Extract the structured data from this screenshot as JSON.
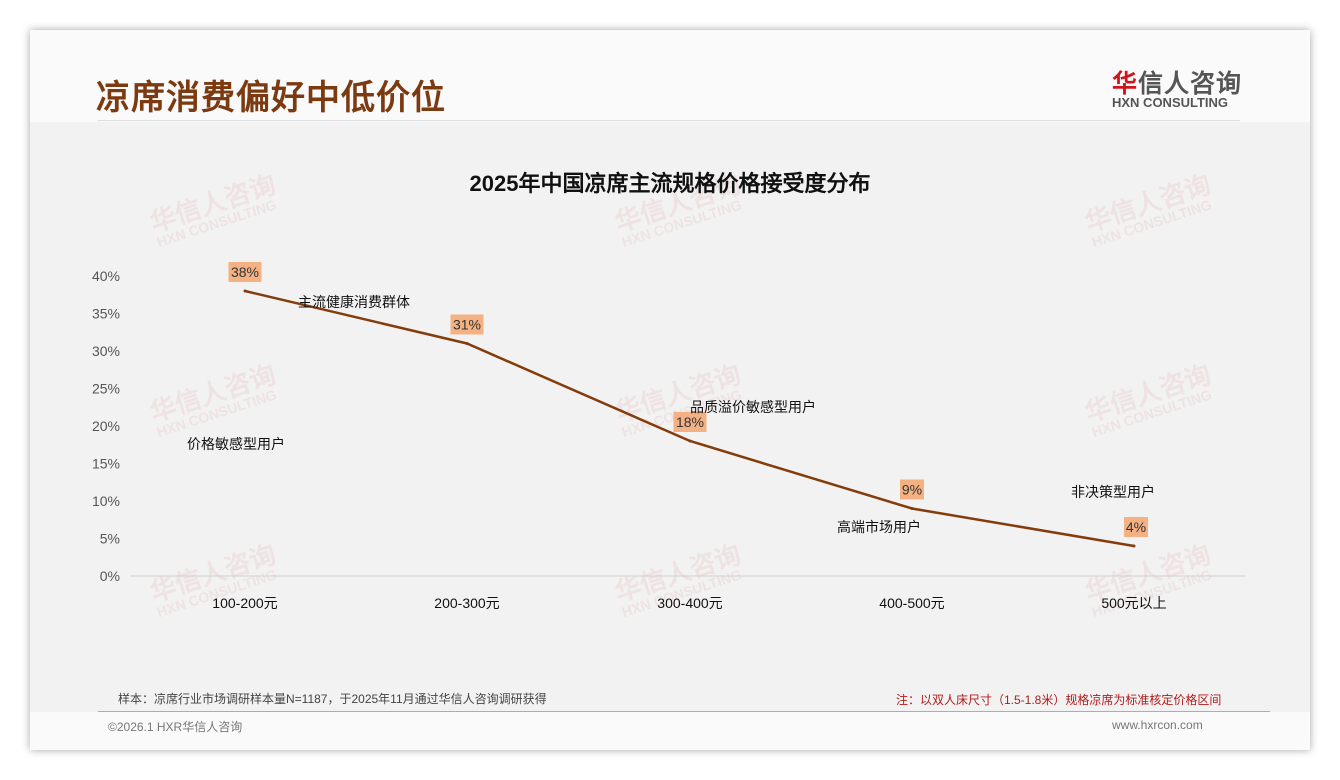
{
  "header": {
    "title": "凉席消费偏好中低价位",
    "logo_cn_red": "华",
    "logo_cn_rest": "信人咨询",
    "logo_en": "HXN CONSULTING"
  },
  "watermark": {
    "cn": "华信人咨询",
    "en": "HXN CONSULTING"
  },
  "chart_data": {
    "type": "line",
    "title": "2025年中国凉席主流规格价格接受度分布",
    "categories": [
      "100-200元",
      "200-300元",
      "300-400元",
      "400-500元",
      "500元以上"
    ],
    "values": [
      38,
      31,
      18,
      9,
      4
    ],
    "data_labels": [
      "38%",
      "31%",
      "18%",
      "9%",
      "4%"
    ],
    "ylim": [
      0,
      40
    ],
    "yticks": [
      "0%",
      "5%",
      "10%",
      "15%",
      "20%",
      "25%",
      "30%",
      "35%",
      "40%"
    ],
    "series_color": "#843c0c",
    "label_bg": "#f4b183",
    "annotations": [
      "主流健康消费群体",
      "价格敏感型用户",
      "品质溢价敏感型用户",
      "高端市场用户",
      "非决策型用户"
    ],
    "grid": false
  },
  "footer": {
    "sample_note": "样本：凉席行业市场调研样本量N=1187，于2025年11月通过华信人咨询调研获得",
    "price_note": "注：以双人床尺寸（1.5-1.8米）规格凉席为标准核定价格区间",
    "copyright": "©2026.1 HXR华信人咨询",
    "url": "www.hxrcon.com"
  }
}
